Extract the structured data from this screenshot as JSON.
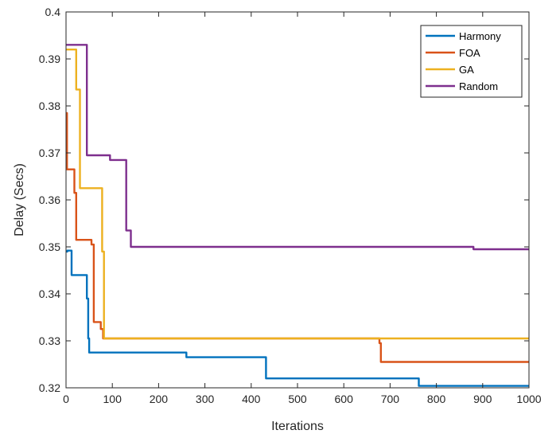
{
  "chart_data": {
    "type": "line",
    "title": "",
    "xlabel": "Iterations",
    "ylabel": "Delay (Secs)",
    "xlim": [
      0,
      1000
    ],
    "ylim": [
      0.32,
      0.4
    ],
    "xticks": [
      0,
      100,
      200,
      300,
      400,
      500,
      600,
      700,
      800,
      900,
      1000
    ],
    "xtick_labels": [
      "0",
      "100",
      "200",
      "300",
      "400",
      "500",
      "600",
      "700",
      "800",
      "900",
      "1000"
    ],
    "yticks": [
      0.32,
      0.33,
      0.34,
      0.35,
      0.36,
      0.37,
      0.38,
      0.39,
      0.4
    ],
    "ytick_labels": [
      "0.32",
      "0.33",
      "0.34",
      "0.35",
      "0.36",
      "0.37",
      "0.38",
      "0.39",
      "0.4"
    ],
    "grid": false,
    "legend_position": "top-right",
    "series": [
      {
        "name": "Harmony",
        "color": "#0072BD",
        "x": [
          0,
          3,
          3,
          12,
          12,
          45,
          45,
          48,
          48,
          50,
          50,
          260,
          260,
          432,
          432,
          762,
          762,
          1000
        ],
        "y": [
          0.349,
          0.349,
          0.3492,
          0.3492,
          0.344,
          0.344,
          0.339,
          0.339,
          0.3305,
          0.3305,
          0.3275,
          0.3275,
          0.3265,
          0.3265,
          0.322,
          0.322,
          0.3204,
          0.3204
        ]
      },
      {
        "name": "FOA",
        "color": "#D95319",
        "x": [
          0,
          2,
          2,
          6,
          6,
          18,
          18,
          22,
          22,
          55,
          55,
          60,
          60,
          63,
          63,
          75,
          75,
          80,
          80,
          677,
          677,
          680,
          680,
          1000
        ],
        "y": [
          0.3785,
          0.3785,
          0.3665,
          0.3665,
          0.3665,
          0.3665,
          0.3615,
          0.3615,
          0.3515,
          0.3515,
          0.3505,
          0.3505,
          0.334,
          0.334,
          0.334,
          0.334,
          0.3325,
          0.3325,
          0.3305,
          0.3305,
          0.3295,
          0.3295,
          0.3255,
          0.3255
        ]
      },
      {
        "name": "GA",
        "color": "#EDB120",
        "x": [
          0,
          22,
          22,
          26,
          26,
          30,
          30,
          78,
          78,
          82,
          82,
          85,
          85,
          1000
        ],
        "y": [
          0.392,
          0.392,
          0.3835,
          0.3835,
          0.3835,
          0.3835,
          0.3625,
          0.3625,
          0.349,
          0.349,
          0.3305,
          0.3305,
          0.3305,
          0.3305
        ]
      },
      {
        "name": "Random",
        "color": "#7E2F8E",
        "x": [
          0,
          45,
          45,
          95,
          95,
          130,
          130,
          135,
          135,
          140,
          140,
          145,
          145,
          880,
          880,
          1000
        ],
        "y": [
          0.393,
          0.393,
          0.3695,
          0.3695,
          0.3685,
          0.3685,
          0.3535,
          0.3535,
          0.3535,
          0.3535,
          0.35,
          0.35,
          0.35,
          0.35,
          0.3495,
          0.3495
        ]
      }
    ]
  }
}
